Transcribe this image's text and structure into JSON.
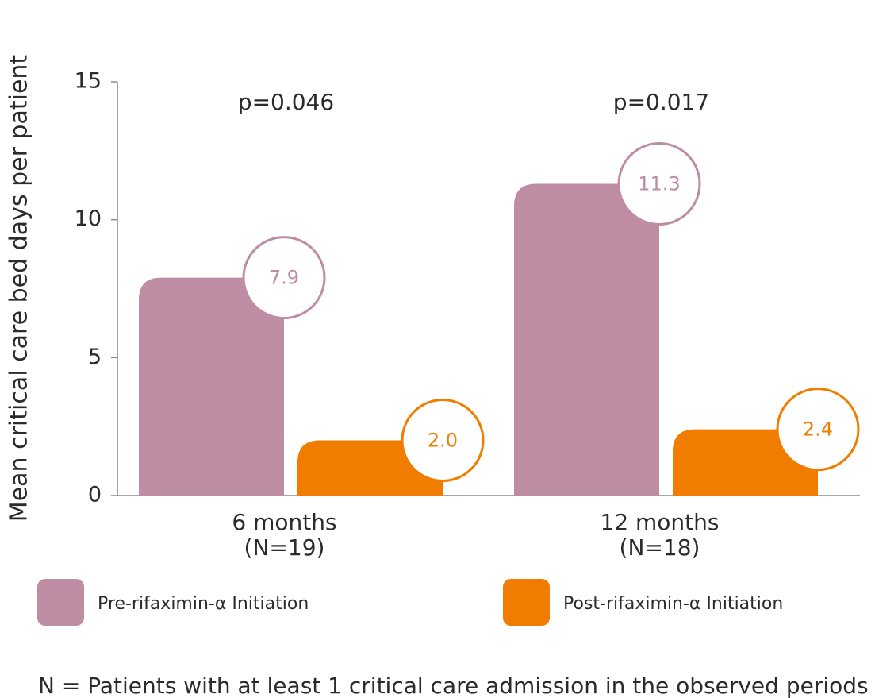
{
  "chart_data": {
    "type": "bar",
    "ylabel": "Mean critical care bed days per patient",
    "ylim": [
      0,
      15
    ],
    "yticks": [
      0,
      5,
      10,
      15
    ],
    "categories": [
      {
        "line1": "6 months",
        "line2": "(N=19)",
        "pvalue": "p=0.046"
      },
      {
        "line1": "12 months",
        "line2": "(N=18)",
        "pvalue": "p=0.017"
      }
    ],
    "series": [
      {
        "name": "Pre-rifaximin-α Initiation",
        "color": "#be8ca3",
        "values": [
          7.9,
          11.3
        ],
        "labels": [
          "7.9",
          "11.3"
        ]
      },
      {
        "name": "Post-rifaximin-α Initiation",
        "color": "#f07d00",
        "values": [
          2.0,
          2.4
        ],
        "labels": [
          "2.0",
          "2.4"
        ]
      }
    ],
    "grid": false,
    "legend_position": "bottom"
  },
  "footnote": "N = Patients with at least 1 critical care admission in the observed periods"
}
